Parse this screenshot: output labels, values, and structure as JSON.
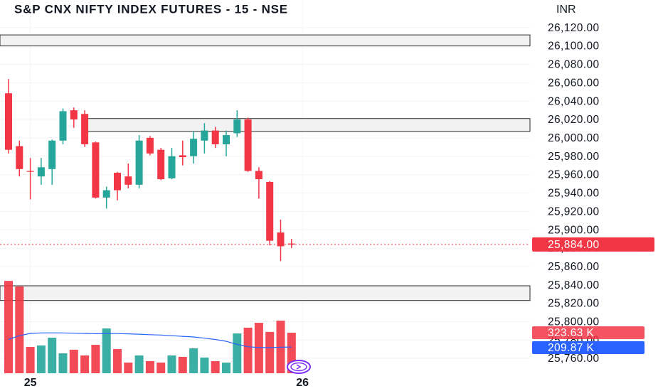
{
  "chart_data": {
    "type": "candlestick",
    "title": "S&P CNX NIFTY INDEX FUTURES - 15 - NSE",
    "currency": "INR",
    "categories": [
      null,
      null,
      "25",
      null,
      null,
      null,
      null,
      null,
      null,
      null,
      null,
      null,
      null,
      null,
      null,
      null,
      null,
      null,
      null,
      null,
      null,
      null,
      null,
      null,
      null,
      null,
      null,
      "26"
    ],
    "open": [
      26048.5,
      25991,
      25964,
      25958,
      25966,
      25997,
      26030,
      26026,
      25995,
      25935,
      25962,
      25958,
      25949,
      26000,
      25987,
      25956,
      25981,
      25980,
      25997,
      26008,
      25993,
      26005,
      26020,
      25964,
      25952,
      25897,
      25885,
      null
    ],
    "high": [
      26064,
      25997,
      25978,
      25978,
      25998,
      26032,
      26033,
      26030,
      25996,
      25947,
      25963,
      25972,
      26003,
      26002,
      25989,
      25989,
      25997,
      26007,
      26016,
      26012,
      26008,
      26030,
      26022,
      25968,
      25953,
      25911,
      25890,
      null
    ],
    "low": [
      25983,
      25958,
      25933,
      25949,
      25949,
      25993,
      26011,
      25990,
      25934,
      25923,
      25932,
      25945,
      25945,
      25981,
      25954,
      25955,
      25970,
      25972,
      25983,
      25989,
      25980,
      26001,
      25963,
      25934,
      25883,
      25866,
      25880,
      null
    ],
    "close": [
      25987,
      25966,
      25963,
      25968,
      25997,
      26029,
      26020,
      25993,
      25935,
      25943,
      25943,
      25949,
      25997,
      25983,
      25955,
      25980,
      25979,
      25999,
      26008,
      25993,
      26003,
      26020,
      25964,
      25955,
      25888,
      25882,
      25884,
      null
    ],
    "up_color": "#26a69a",
    "down_color": "#f23645",
    "ylim": [
      25740,
      26150
    ],
    "yticks": [
      {
        "value": 26120,
        "label": "26,120.00"
      },
      {
        "value": 26100,
        "label": "26,100.00"
      },
      {
        "value": 26080,
        "label": "26,080.00"
      },
      {
        "value": 26060,
        "label": "26,060.00"
      },
      {
        "value": 26040,
        "label": "26,040.00"
      },
      {
        "value": 26020,
        "label": "26,020.00"
      },
      {
        "value": 26000,
        "label": "26,000.00"
      },
      {
        "value": 25980,
        "label": "25,980.00"
      },
      {
        "value": 25960,
        "label": "25,960.00"
      },
      {
        "value": 25940,
        "label": "25,940.00"
      },
      {
        "value": 25920,
        "label": "25,920.00"
      },
      {
        "value": 25900,
        "label": "25,900.00"
      },
      {
        "value": 25880,
        "label": "25,880.00"
      },
      {
        "value": 25860,
        "label": "25,860.00"
      },
      {
        "value": 25840,
        "label": "25,840.00"
      },
      {
        "value": 25820,
        "label": "25,820.00"
      },
      {
        "value": 25800,
        "label": "25,800.00"
      },
      {
        "value": 25780,
        "label": "25,780.00"
      },
      {
        "value": 25760,
        "label": "25,760.00"
      }
    ],
    "grid": true,
    "last_price": {
      "value": 25884,
      "label": "25,884.00"
    },
    "zones": [
      {
        "high": 26112,
        "low": 26100
      },
      {
        "high": 26021,
        "low": 26007
      },
      {
        "high": 25839,
        "low": 25823
      }
    ],
    "volume": {
      "values": [
        738,
        693,
        210,
        222,
        284,
        159,
        188,
        142,
        227,
        358,
        193,
        85,
        142,
        97,
        85,
        142,
        131,
        199,
        125,
        97,
        85,
        318,
        364,
        403,
        330,
        420,
        323.63,
        null
      ],
      "last_label": "323.63 K",
      "vlim": [
        0,
        750
      ]
    },
    "volume_ma": {
      "values": [
        270,
        300,
        318,
        322,
        323,
        322,
        320,
        318,
        316,
        318,
        317,
        315,
        312,
        308,
        305,
        300,
        295,
        290,
        280,
        270,
        255,
        230,
        212,
        205,
        205,
        208,
        209.87,
        null
      ],
      "last_label": "209.87 K",
      "color": "#2962ff"
    }
  }
}
